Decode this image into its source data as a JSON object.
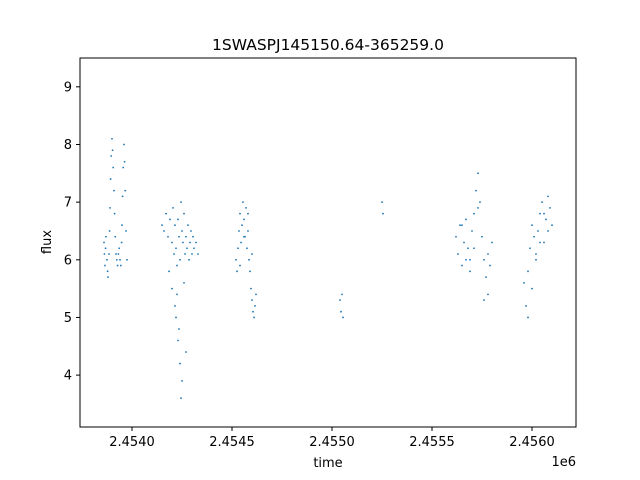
{
  "chart_data": {
    "type": "scatter",
    "title": "1SWASPJ145150.64-365259.0",
    "xlabel": "time",
    "ylabel": "flux",
    "x_offset_label": "1e6",
    "x_scale": 1000000,
    "xlim": [
      2453740,
      2456220
    ],
    "ylim": [
      3.1,
      9.5
    ],
    "x_ticks": [
      2454000,
      2454500,
      2455000,
      2455500,
      2456000
    ],
    "x_tick_labels": [
      "2.4540",
      "2.4545",
      "2.4550",
      "2.4555",
      "2.4560"
    ],
    "y_ticks": [
      4,
      5,
      6,
      7,
      8,
      9
    ],
    "y_tick_labels": [
      "4",
      "5",
      "6",
      "7",
      "8",
      "9"
    ],
    "grid": false,
    "marker_color": "#1f77b4",
    "series": [
      {
        "x": [
          2453860,
          2453862,
          2453865,
          2453868,
          2453870,
          2453875,
          2453878,
          2453880,
          2453885,
          2453888,
          2453890,
          2453893,
          2453896,
          2453900,
          2453903,
          2453906,
          2453910,
          2453913,
          2453916,
          2453920,
          2453924,
          2453928,
          2453932,
          2453936,
          2453940,
          2453944,
          2453948,
          2453950,
          2453953,
          2453956,
          2453960,
          2453963,
          2453966,
          2453970,
          2453975,
          2454150,
          2454160,
          2454170,
          2454180,
          2454190,
          2454200,
          2454205,
          2454210,
          2454215,
          2454220,
          2454225,
          2454230,
          2454235,
          2454240,
          2454245,
          2454250,
          2454255,
          2454260,
          2454265,
          2454270,
          2454275,
          2454280,
          2454285,
          2454290,
          2454295,
          2454300,
          2454305,
          2454310,
          2454320,
          2454330,
          2454220,
          2454230,
          2454240,
          2454250,
          2454225,
          2454235,
          2454245,
          2454215,
          2454260,
          2454270,
          2454200,
          2454185,
          2454520,
          2454525,
          2454530,
          2454535,
          2454540,
          2454545,
          2454550,
          2454555,
          2454560,
          2454565,
          2454570,
          2454575,
          2454580,
          2454585,
          2454590,
          2454595,
          2454600,
          2454605,
          2454610,
          2454615,
          2454620,
          2454540,
          2454560,
          2454580,
          2454600,
          2455040,
          2455045,
          2455050,
          2455055,
          2455250,
          2455255,
          2455620,
          2455630,
          2455640,
          2455650,
          2455660,
          2455670,
          2455680,
          2455690,
          2455700,
          2455710,
          2455720,
          2455730,
          2455740,
          2455750,
          2455760,
          2455770,
          2455780,
          2455790,
          2455800,
          2455650,
          2455670,
          2455690,
          2455710,
          2455730,
          2455760,
          2455780,
          2455960,
          2455970,
          2455980,
          2455990,
          2456000,
          2456010,
          2456020,
          2456030,
          2456040,
          2456050,
          2456060,
          2456070,
          2456080,
          2456090,
          2456100,
          2455980,
          2456000,
          2456020,
          2456040,
          2456060,
          2456080
        ],
        "y": [
          6.3,
          6.1,
          5.9,
          6.2,
          6.4,
          6.0,
          5.8,
          5.7,
          6.1,
          6.5,
          6.9,
          7.4,
          7.8,
          8.1,
          7.9,
          7.6,
          7.2,
          6.8,
          6.4,
          6.1,
          6.0,
          5.9,
          6.1,
          6.2,
          6.0,
          5.9,
          6.3,
          6.6,
          7.1,
          7.6,
          8.0,
          7.7,
          7.2,
          6.5,
          6.0,
          6.6,
          6.5,
          6.8,
          6.4,
          6.7,
          6.3,
          6.9,
          6.1,
          6.6,
          6.2,
          5.9,
          6.7,
          6.4,
          6.0,
          7.0,
          6.5,
          6.3,
          6.8,
          6.1,
          6.4,
          6.2,
          6.6,
          6.0,
          6.3,
          6.5,
          6.1,
          6.4,
          6.2,
          6.3,
          6.1,
          5.0,
          4.6,
          4.2,
          3.9,
          5.4,
          4.8,
          3.6,
          5.2,
          5.6,
          4.4,
          5.5,
          5.8,
          6.0,
          5.8,
          6.2,
          6.5,
          6.8,
          6.3,
          6.6,
          7.0,
          6.7,
          6.4,
          6.9,
          6.2,
          6.5,
          6.0,
          5.8,
          5.5,
          5.3,
          5.1,
          5.0,
          5.2,
          5.4,
          5.9,
          6.4,
          6.8,
          6.1,
          5.3,
          5.1,
          5.4,
          5.0,
          7.0,
          6.8,
          6.4,
          6.1,
          6.6,
          5.9,
          6.3,
          6.7,
          6.2,
          6.0,
          6.5,
          6.8,
          7.2,
          7.5,
          7.0,
          6.4,
          6.0,
          5.7,
          5.4,
          5.9,
          6.3,
          6.6,
          6.0,
          5.8,
          6.2,
          6.9,
          5.3,
          6.1,
          5.6,
          5.2,
          5.8,
          6.2,
          6.6,
          6.4,
          6.0,
          6.5,
          6.8,
          7.0,
          6.3,
          6.7,
          6.5,
          6.9,
          6.6,
          5.0,
          5.5,
          6.1,
          6.3,
          6.8,
          7.1
        ]
      }
    ]
  }
}
